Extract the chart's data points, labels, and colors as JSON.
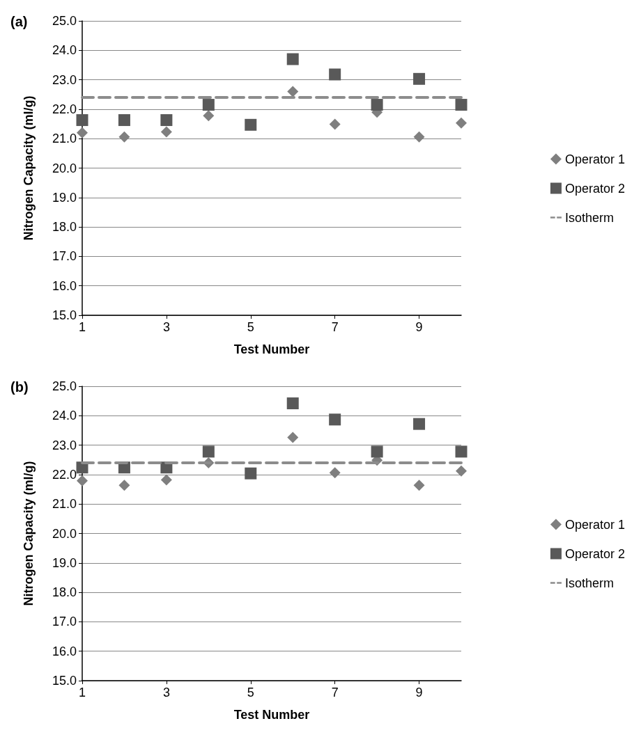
{
  "chart_data": [
    {
      "type": "scatter",
      "title": "(a)",
      "xlabel": "Test Number",
      "ylabel": "Nitrogen Capacity (ml/g)",
      "x": [
        1,
        2,
        3,
        4,
        5,
        6,
        7,
        8,
        9,
        10
      ],
      "xlim": [
        1,
        10
      ],
      "xticks": [
        1,
        3,
        5,
        7,
        9
      ],
      "ylim": [
        15,
        25
      ],
      "yticks": [
        {
          "value": 15,
          "label": "15.0"
        },
        {
          "value": 16,
          "label": "16.0"
        },
        {
          "value": 17,
          "label": "17.0"
        },
        {
          "value": 18,
          "label": "18.0"
        },
        {
          "value": 19,
          "label": "19.0"
        },
        {
          "value": 20,
          "label": "20.0"
        },
        {
          "value": 21,
          "label": "21.0"
        },
        {
          "value": 22,
          "label": "22.0"
        },
        {
          "value": 23,
          "label": "23.0"
        },
        {
          "value": 24,
          "label": "24.0"
        },
        {
          "value": 25,
          "label": "25.0"
        }
      ],
      "grid": "y",
      "legend": "right",
      "series": [
        {
          "name": "Operator 1",
          "color": "#7f7f7f",
          "marker": "diamond",
          "values": [
            21.2,
            21.06,
            21.23,
            21.78,
            null,
            22.6,
            21.49,
            21.9,
            21.06,
            21.53
          ]
        },
        {
          "name": "Operator 2",
          "color": "#595959",
          "marker": "square",
          "values": [
            21.63,
            21.63,
            21.63,
            22.15,
            21.47,
            23.7,
            23.18,
            22.15,
            23.03,
            22.15
          ]
        }
      ],
      "ref_lines": [
        {
          "axis": "y",
          "value": 22.4,
          "label": "Isotherm",
          "color": "#8c8c8c",
          "line_style": "dashed"
        }
      ]
    },
    {
      "type": "scatter",
      "title": "(b)",
      "xlabel": "Test Number",
      "ylabel": "Nitrogen Capacity (ml/g)",
      "x": [
        1,
        2,
        3,
        4,
        5,
        6,
        7,
        8,
        9,
        10
      ],
      "xlim": [
        1,
        10
      ],
      "xticks": [
        1,
        3,
        5,
        7,
        9
      ],
      "ylim": [
        15,
        25
      ],
      "yticks": [
        {
          "value": 15,
          "label": "15.0"
        },
        {
          "value": 16,
          "label": "16.0"
        },
        {
          "value": 17,
          "label": "17.0"
        },
        {
          "value": 18,
          "label": "18.0"
        },
        {
          "value": 19,
          "label": "19.0"
        },
        {
          "value": 20,
          "label": "20.0"
        },
        {
          "value": 21,
          "label": "21.0"
        },
        {
          "value": 22,
          "label": "22.0"
        },
        {
          "value": 23,
          "label": "23.0"
        },
        {
          "value": 24,
          "label": "24.0"
        },
        {
          "value": 25,
          "label": "25.0"
        }
      ],
      "grid": "y",
      "legend": "right",
      "series": [
        {
          "name": "Operator 1",
          "color": "#7f7f7f",
          "marker": "diamond",
          "values": [
            21.79,
            21.64,
            21.82,
            22.4,
            null,
            23.26,
            22.06,
            22.49,
            21.64,
            22.12
          ]
        },
        {
          "name": "Operator 2",
          "color": "#595959",
          "marker": "square",
          "values": [
            22.24,
            22.24,
            22.24,
            22.78,
            22.04,
            24.42,
            23.87,
            22.78,
            23.72,
            22.78
          ]
        }
      ],
      "ref_lines": [
        {
          "axis": "y",
          "value": 22.4,
          "label": "Isotherm",
          "color": "#8c8c8c",
          "line_style": "dashed"
        }
      ]
    }
  ]
}
